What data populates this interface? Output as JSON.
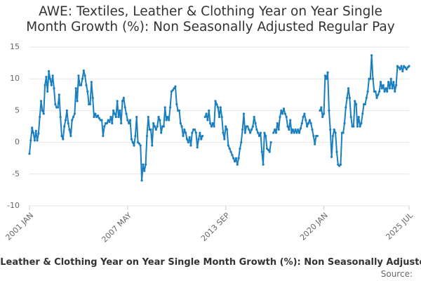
{
  "chart_data": {
    "type": "line",
    "title": "AWE: Textiles, Leather & Clothing Year on Year Single Month Growth (%): Non Seasonally Adjusted Regular Pay",
    "source": "Source:",
    "ylim": [
      -10,
      15
    ],
    "yticks": [
      -10,
      -5,
      0,
      5,
      10,
      15
    ],
    "grid": true,
    "categories": [
      "2001 JAN",
      null,
      null,
      null,
      null,
      null,
      null,
      null,
      null,
      null,
      null,
      null,
      null,
      null,
      null,
      null,
      null,
      null,
      null,
      null,
      null,
      null,
      null,
      null,
      null,
      null,
      null,
      null,
      null,
      null,
      null,
      null,
      null,
      null,
      null,
      null,
      null,
      null,
      null,
      null,
      null,
      null,
      null,
      null,
      null,
      null,
      null,
      null,
      null,
      null,
      null,
      null,
      null,
      null,
      null,
      null,
      null,
      null,
      null,
      null,
      null,
      null,
      null,
      null,
      null,
      null,
      null,
      null,
      null,
      null,
      null,
      null,
      null,
      null,
      null,
      null,
      "2007 MAY",
      null,
      null,
      null,
      null,
      null,
      null,
      null,
      null,
      null,
      null,
      null,
      null,
      null,
      null,
      null,
      null,
      null,
      null,
      null,
      null,
      null,
      null,
      null,
      null,
      null,
      null,
      null,
      null,
      null,
      null,
      null,
      null,
      null,
      null,
      null,
      null,
      null,
      null,
      null,
      null,
      null,
      null,
      null,
      null,
      null,
      null,
      null,
      null,
      null,
      null,
      null,
      null,
      null,
      null,
      null,
      null,
      null,
      null,
      null,
      null,
      null,
      null,
      null,
      null,
      null,
      null,
      null,
      null,
      null,
      null,
      null,
      null,
      null,
      null,
      null,
      "2013 SEP",
      null,
      null,
      null,
      null,
      null,
      null,
      null,
      null,
      null,
      null,
      null,
      null,
      null,
      null,
      null,
      null,
      null,
      null,
      null,
      null,
      null,
      null,
      null,
      null,
      null,
      null,
      null,
      null,
      null,
      null,
      null,
      null,
      null,
      null,
      null,
      null,
      null,
      null,
      null,
      null,
      null,
      null,
      null,
      null,
      null,
      null,
      null,
      null,
      null,
      null,
      null,
      null,
      null,
      null,
      null,
      null,
      null,
      null,
      null,
      null,
      null,
      null,
      null,
      null,
      null,
      null,
      null,
      null,
      null,
      null,
      null,
      null,
      null,
      null,
      null,
      "2020 JAN",
      null,
      null,
      null,
      null,
      null,
      null,
      null,
      null,
      null,
      null,
      null,
      null,
      null,
      null,
      null,
      null,
      null,
      null,
      null,
      null,
      null,
      null,
      null,
      null,
      null,
      null,
      null,
      null,
      null,
      null,
      null,
      null,
      null,
      null,
      null,
      null,
      null,
      null,
      null,
      null,
      null,
      null,
      null,
      null,
      null,
      null,
      null,
      null,
      null,
      null,
      null,
      null,
      null,
      null,
      null,
      null,
      null,
      null,
      null,
      null,
      null,
      null,
      null,
      null,
      null,
      "2025 JUL"
    ],
    "series": [
      {
        "name": "AWE: Textiles, Leather & Clothing Year on Year Single Month Growth (%): Non Seasonally Adjusted Regular Pay",
        "color": "#1a7fc1",
        "values": [
          -1.8,
          0.3,
          2.3,
          1.5,
          0.3,
          1.8,
          0.3,
          1.4,
          4,
          6.5,
          5,
          4.5,
          9,
          10.3,
          8,
          11.2,
          10,
          9,
          10.5,
          8.5,
          6,
          5.5,
          5.5,
          7.5,
          4,
          1,
          0.5,
          2.5,
          3.5,
          5,
          3,
          2,
          1,
          3.5,
          4,
          4.5,
          8.5,
          6.5,
          10.5,
          9,
          9,
          10,
          11.3,
          10.5,
          9,
          8,
          6,
          6,
          9.5,
          7,
          4,
          4.5,
          4,
          4.2,
          3.8,
          3.5,
          3.5,
          1,
          2.5,
          3,
          3,
          3.5,
          3.2,
          4,
          3,
          5,
          4.5,
          4,
          6.5,
          4,
          5,
          3,
          6.5,
          7,
          5.5,
          4.5,
          3.5,
          3,
          3.5,
          0.5,
          0,
          -0.5,
          1,
          4,
          0,
          -0.2,
          -0.5,
          -6,
          -3.5,
          -4.5,
          -3.5,
          1,
          4,
          2,
          2,
          -0.5,
          3,
          2.5,
          2,
          2.5,
          4,
          3.5,
          1.5,
          2.5,
          2.5,
          5.5,
          3.5,
          4,
          3.5,
          5.5,
          8,
          8.2,
          8.5,
          8.8,
          6,
          5,
          5,
          3,
          2.5,
          1,
          2,
          1.5,
          0.5,
          0,
          0.8,
          -0.5,
          1.5,
          2,
          2,
          1.5,
          -0.8,
          0.5,
          1.5,
          0.5,
          1,
          null,
          4,
          4.5,
          3.5,
          5,
          3,
          2.5,
          3,
          2.5,
          6.5,
          6,
          5.5,
          4,
          5.5,
          4,
          1.5,
          0.5,
          2.5,
          2,
          -0.5,
          -1,
          -1.5,
          -2,
          -2.5,
          -3,
          -2.5,
          -3.5,
          -2.5,
          -1,
          0,
          2,
          4.5,
          1.5,
          2.5,
          2.5,
          2,
          1.5,
          2,
          2.5,
          4,
          3,
          2,
          1.5,
          1,
          1.5,
          -1.5,
          -3.5,
          1.5,
          1,
          -1,
          -1.2,
          -1.5,
          0,
          null,
          1.5,
          2,
          1.5,
          3,
          2,
          4,
          5,
          4.5,
          5.3,
          4.5,
          4,
          2.5,
          2,
          3.5,
          1.5,
          2,
          1.5,
          2,
          1.5,
          2,
          1.5,
          2.2,
          3,
          4,
          4.5,
          3.5,
          2.5,
          3,
          3.5,
          3,
          2,
          1,
          -0.3,
          1,
          1,
          null,
          5,
          5.5,
          4,
          4.5,
          10.5,
          10,
          11,
          5,
          2,
          -2.3,
          1,
          2,
          1.5,
          -1.5,
          -3.5,
          -3.7,
          -3.5,
          1.5,
          1.5,
          3,
          5.5,
          7,
          8.5,
          7,
          4,
          2.5,
          2.5,
          6.5,
          6,
          2.5,
          4,
          2.5,
          3,
          4.5,
          6,
          6,
          7,
          8,
          10,
          10,
          13.7,
          10,
          8,
          8,
          7,
          7.5,
          8,
          9.5,
          8.5,
          9,
          8,
          8.5,
          8,
          9.5,
          8.5,
          10,
          8.5,
          9.5,
          8,
          9,
          12,
          11.8,
          11.5,
          12,
          11.2,
          12,
          11.8,
          11.5,
          11.8,
          12
        ]
      }
    ]
  }
}
